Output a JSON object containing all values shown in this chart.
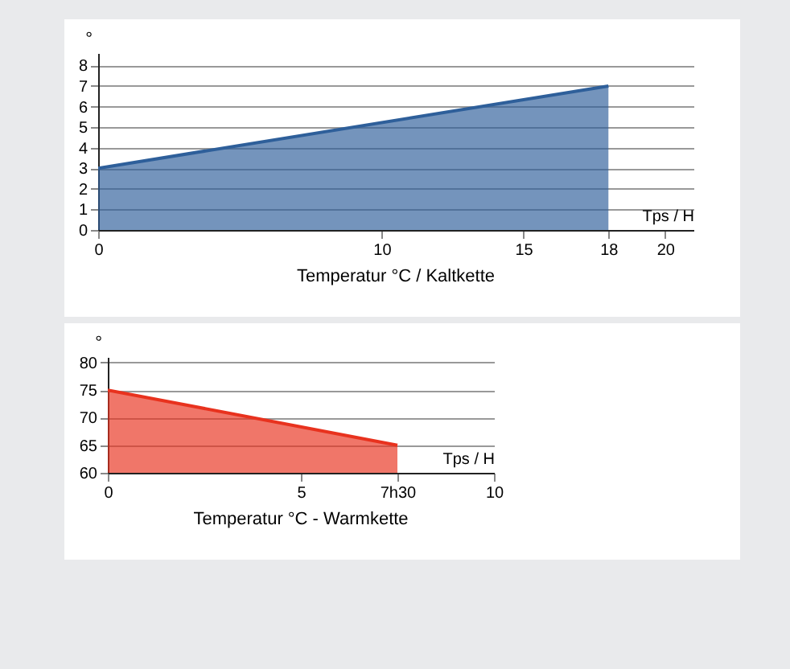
{
  "chart_data": [
    {
      "type": "area",
      "title": "Temperatur °C / Kaltkette",
      "xlabel": "Tps / H",
      "ylabel": "°",
      "x": [
        0,
        18
      ],
      "series": [
        {
          "color": "#2e5f9a",
          "values": [
            3,
            7
          ]
        }
      ],
      "xlim": [
        0,
        21
      ],
      "xticks": [
        0,
        10,
        15,
        18,
        20
      ],
      "ylim": [
        0,
        8.6
      ],
      "yticks": [
        0,
        1,
        2,
        3,
        4,
        5,
        6,
        7,
        8
      ],
      "grid": "y"
    },
    {
      "type": "area",
      "title": "Temperatur °C - Warmkette",
      "xlabel": "Tps / H",
      "ylabel": "°",
      "x": [
        0,
        7.5
      ],
      "series": [
        {
          "color": "#e8321e",
          "values": [
            75,
            65
          ]
        }
      ],
      "xlim": [
        0,
        10
      ],
      "xticks": [
        0,
        5,
        {
          "value": 7.5,
          "label": "7h30"
        },
        10
      ],
      "ylim": [
        60,
        81
      ],
      "yticks": [
        60,
        65,
        70,
        75,
        80
      ],
      "grid": "y"
    }
  ]
}
